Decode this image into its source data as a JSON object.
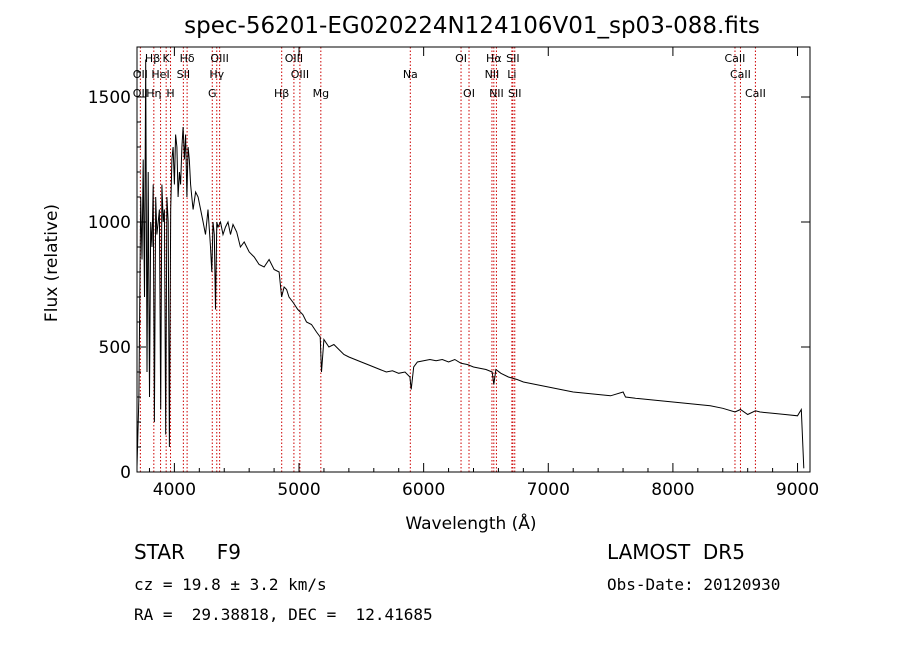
{
  "chart_data": {
    "type": "line",
    "title": "spec-56201-EG020224N124106V01_sp03-088.fits",
    "xlabel": "Wavelength (Å)",
    "ylabel": "Flux (relative)",
    "xlim": [
      3700,
      9100
    ],
    "ylim": [
      0,
      1700
    ],
    "xticks": [
      4000,
      5000,
      6000,
      7000,
      8000,
      9000
    ],
    "yticks": [
      0,
      500,
      1000,
      1500
    ],
    "grid": false,
    "series": [
      {
        "x": [
          3700,
          3715,
          3730,
          3740,
          3750,
          3760,
          3770,
          3780,
          3790,
          3800,
          3810,
          3820,
          3830,
          3840,
          3850,
          3860,
          3870,
          3880,
          3890,
          3900,
          3910,
          3920,
          3930,
          3940,
          3950,
          3960,
          3970,
          3980,
          3990,
          4000,
          4010,
          4020,
          4030,
          4040,
          4050,
          4060,
          4070,
          4080,
          4090,
          4100,
          4110,
          4120,
          4130,
          4140,
          4150,
          4170,
          4190,
          4210,
          4230,
          4250,
          4270,
          4290,
          4300,
          4310,
          4320,
          4330,
          4340,
          4350,
          4370,
          4390,
          4410,
          4430,
          4450,
          4470,
          4500,
          4530,
          4560,
          4600,
          4640,
          4680,
          4720,
          4760,
          4800,
          4840,
          4860,
          4880,
          4900,
          4920,
          4950,
          4990,
          5030,
          5060,
          5100,
          5140,
          5170,
          5180,
          5200,
          5240,
          5280,
          5320,
          5360,
          5400,
          5450,
          5500,
          5550,
          5600,
          5650,
          5700,
          5750,
          5800,
          5850,
          5890,
          5900,
          5920,
          5950,
          6000,
          6050,
          6100,
          6150,
          6200,
          6250,
          6300,
          6350,
          6400,
          6450,
          6500,
          6550,
          6563,
          6580,
          6620,
          6680,
          6750,
          6800,
          6900,
          7000,
          7100,
          7200,
          7300,
          7400,
          7500,
          7600,
          7620,
          7700,
          7800,
          7900,
          8000,
          8100,
          8200,
          8300,
          8400,
          8498,
          8542,
          8600,
          8662,
          8700,
          8800,
          8900,
          9000,
          9030,
          9050
        ],
        "y": [
          20,
          300,
          1100,
          850,
          1250,
          700,
          1650,
          400,
          1200,
          300,
          1000,
          900,
          1150,
          200,
          1100,
          950,
          1000,
          1050,
          250,
          1150,
          1000,
          1050,
          150,
          1100,
          1000,
          100,
          1050,
          1250,
          1300,
          1150,
          1350,
          1300,
          1100,
          1200,
          1150,
          1300,
          1380,
          1250,
          1350,
          1100,
          1300,
          1250,
          1150,
          1100,
          1050,
          1120,
          1100,
          1050,
          1000,
          950,
          1050,
          900,
          800,
          1000,
          950,
          650,
          1000,
          980,
          1000,
          950,
          980,
          1000,
          950,
          990,
          960,
          900,
          920,
          880,
          860,
          830,
          820,
          850,
          810,
          800,
          700,
          740,
          730,
          700,
          680,
          650,
          630,
          600,
          590,
          560,
          540,
          400,
          530,
          500,
          510,
          490,
          470,
          460,
          450,
          440,
          430,
          420,
          410,
          400,
          405,
          395,
          400,
          380,
          330,
          420,
          440,
          445,
          450,
          445,
          450,
          440,
          450,
          435,
          430,
          420,
          415,
          410,
          400,
          350,
          410,
          395,
          380,
          370,
          360,
          350,
          340,
          330,
          320,
          315,
          310,
          305,
          320,
          300,
          295,
          290,
          285,
          280,
          275,
          270,
          265,
          255,
          240,
          250,
          230,
          245,
          240,
          235,
          230,
          225,
          250,
          15
        ]
      }
    ],
    "lines": [
      {
        "label": "Hη",
        "x": 3835
      },
      {
        "label": "OII",
        "x": 3727
      },
      {
        "label": "Hε",
        "x": 3889
      },
      {
        "label": "CaII K",
        "x": 3934
      },
      {
        "label": "CaII H",
        "x": 3969
      },
      {
        "label": "SII",
        "x": 4072
      },
      {
        "label": "Hδ",
        "x": 4102
      },
      {
        "label": "G",
        "x": 4304
      },
      {
        "label": "Hγ",
        "x": 4340
      },
      {
        "label": "OIII",
        "x": 4363
      },
      {
        "label": "Hβ",
        "x": 4861
      },
      {
        "label": "OIII",
        "x": 4959
      },
      {
        "label": "OIII",
        "x": 5007
      },
      {
        "label": "Mg",
        "x": 5175
      },
      {
        "label": "Na",
        "x": 5893
      },
      {
        "label": "OI",
        "x": 6300
      },
      {
        "label": "OI",
        "x": 6364
      },
      {
        "label": "NII",
        "x": 6548
      },
      {
        "label": "Hα",
        "x": 6563
      },
      {
        "label": "NII",
        "x": 6584
      },
      {
        "label": "Li",
        "x": 6708
      },
      {
        "label": "SII",
        "x": 6716
      },
      {
        "label": "SII",
        "x": 6731
      },
      {
        "label": "CaII",
        "x": 8498
      },
      {
        "label": "CaII",
        "x": 8542
      },
      {
        "label": "CaII",
        "x": 8662
      }
    ]
  },
  "line_labels": [
    {
      "text": "Hβ",
      "x": 3825,
      "row": 0
    },
    {
      "text": "K",
      "x": 3934,
      "row": 0
    },
    {
      "text": "Hδ",
      "x": 4102,
      "row": 0
    },
    {
      "text": "OIII",
      "x": 4363,
      "row": 0
    },
    {
      "text": "OIII",
      "x": 4959,
      "row": 0
    },
    {
      "text": "OI",
      "x": 6300,
      "row": 0
    },
    {
      "text": "Hα",
      "x": 6563,
      "row": 0
    },
    {
      "text": "SII",
      "x": 6716,
      "row": 0
    },
    {
      "text": "CaII",
      "x": 8498,
      "row": 0
    },
    {
      "text": "OII",
      "x": 3727,
      "row": 1
    },
    {
      "text": "HeI",
      "x": 3889,
      "row": 1
    },
    {
      "text": "SII",
      "x": 4072,
      "row": 1
    },
    {
      "text": "Hγ",
      "x": 4340,
      "row": 1
    },
    {
      "text": "OIII",
      "x": 5007,
      "row": 1
    },
    {
      "text": "Na",
      "x": 5893,
      "row": 1
    },
    {
      "text": "NII",
      "x": 6548,
      "row": 1
    },
    {
      "text": "Li",
      "x": 6708,
      "row": 1
    },
    {
      "text": "CaII",
      "x": 8542,
      "row": 1
    },
    {
      "text": "OII",
      "x": 3727,
      "row": 2
    },
    {
      "text": "Hη",
      "x": 3835,
      "row": 2
    },
    {
      "text": "H",
      "x": 3969,
      "row": 2
    },
    {
      "text": "G",
      "x": 4304,
      "row": 2
    },
    {
      "text": "Hβ",
      "x": 4861,
      "row": 2
    },
    {
      "text": "Mg",
      "x": 5175,
      "row": 2
    },
    {
      "text": "OI",
      "x": 6364,
      "row": 2
    },
    {
      "text": "NII",
      "x": 6584,
      "row": 2
    },
    {
      "text": "SII",
      "x": 6731,
      "row": 2
    },
    {
      "text": "CaII",
      "x": 8662,
      "row": 2
    }
  ],
  "footer": {
    "object": "STAR     F9",
    "survey": "LAMOST  DR5",
    "cz": "cz = 19.8 ± 3.2 km/s",
    "obs_date": "Obs-Date: 20120930",
    "radec": "RA =  29.38818, DEC =  12.41685"
  },
  "colors": {
    "spectrum": "#000000",
    "line_marker": "#cc0000",
    "axes": "#000000"
  }
}
